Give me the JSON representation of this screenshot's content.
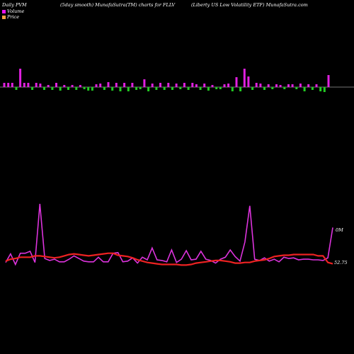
{
  "header": {
    "left": "Daily PVM",
    "middle": "(5day smooth) MunafaSutra(TM) charts for FLLV",
    "right": "(Liberty US Low  Volatility ETF) MunafaSutra.com"
  },
  "legend": [
    {
      "label": "Volume",
      "color": "#ee11ee"
    },
    {
      "label": "Price",
      "color": "#ffa040"
    }
  ],
  "chart_data": [
    {
      "type": "bar",
      "title": "PVM bars",
      "baseline": 0,
      "ylim": [
        -8,
        28
      ],
      "values": [
        6,
        6,
        6,
        -4,
        26,
        6,
        6,
        -4,
        6,
        5,
        -4,
        3,
        -4,
        6,
        -5,
        3,
        -4,
        3,
        -4,
        3,
        -3,
        -5,
        -5,
        4,
        5,
        -4,
        7,
        -5,
        6,
        -6,
        6,
        -6,
        6,
        -4,
        -3,
        11,
        -6,
        5,
        -4,
        6,
        -4,
        6,
        -4,
        5,
        -3,
        6,
        -4,
        6,
        4,
        -4,
        5,
        -5,
        3,
        -3,
        -3,
        4,
        5,
        -6,
        14,
        -6,
        26,
        15,
        -4,
        6,
        5,
        -4,
        4,
        -3,
        4,
        3,
        -3,
        4,
        4,
        -3,
        5,
        -6,
        4,
        -4,
        4,
        -6,
        -7,
        17
      ]
    },
    {
      "type": "line",
      "title": "Volume / Price",
      "ylim": [
        0,
        1
      ],
      "series": [
        {
          "name": "Volume",
          "color": "#dd33dd",
          "values": [
            0.1,
            0.23,
            0.07,
            0.24,
            0.24,
            0.27,
            0.1,
            0.99,
            0.16,
            0.13,
            0.15,
            0.11,
            0.11,
            0.15,
            0.2,
            0.16,
            0.12,
            0.11,
            0.11,
            0.18,
            0.11,
            0.11,
            0.24,
            0.25,
            0.11,
            0.12,
            0.17,
            0.09,
            0.18,
            0.14,
            0.32,
            0.14,
            0.13,
            0.11,
            0.29,
            0.1,
            0.15,
            0.28,
            0.14,
            0.15,
            0.27,
            0.15,
            0.13,
            0.09,
            0.15,
            0.18,
            0.29,
            0.19,
            0.12,
            0.41,
            0.96,
            0.15,
            0.13,
            0.17,
            0.12,
            0.15,
            0.11,
            0.18,
            0.16,
            0.17,
            0.14,
            0.15,
            0.15,
            0.14,
            0.14,
            0.13,
            0.17,
            0.63
          ]
        },
        {
          "name": "Price",
          "color": "#ee2222",
          "values": [
            0.12,
            0.15,
            0.16,
            0.18,
            0.18,
            0.18,
            0.2,
            0.2,
            0.19,
            0.18,
            0.17,
            0.18,
            0.2,
            0.22,
            0.23,
            0.22,
            0.21,
            0.2,
            0.21,
            0.22,
            0.23,
            0.24,
            0.24,
            0.21,
            0.2,
            0.19,
            0.17,
            0.14,
            0.12,
            0.1,
            0.09,
            0.08,
            0.07,
            0.07,
            0.07,
            0.07,
            0.06,
            0.06,
            0.07,
            0.09,
            0.1,
            0.11,
            0.12,
            0.13,
            0.13,
            0.12,
            0.11,
            0.09,
            0.09,
            0.1,
            0.1,
            0.12,
            0.13,
            0.14,
            0.16,
            0.19,
            0.2,
            0.21,
            0.21,
            0.22,
            0.22,
            0.22,
            0.22,
            0.22,
            0.2,
            0.2,
            0.1,
            0.08
          ]
        }
      ],
      "annotations": [
        "0M",
        "52.75"
      ]
    }
  ]
}
